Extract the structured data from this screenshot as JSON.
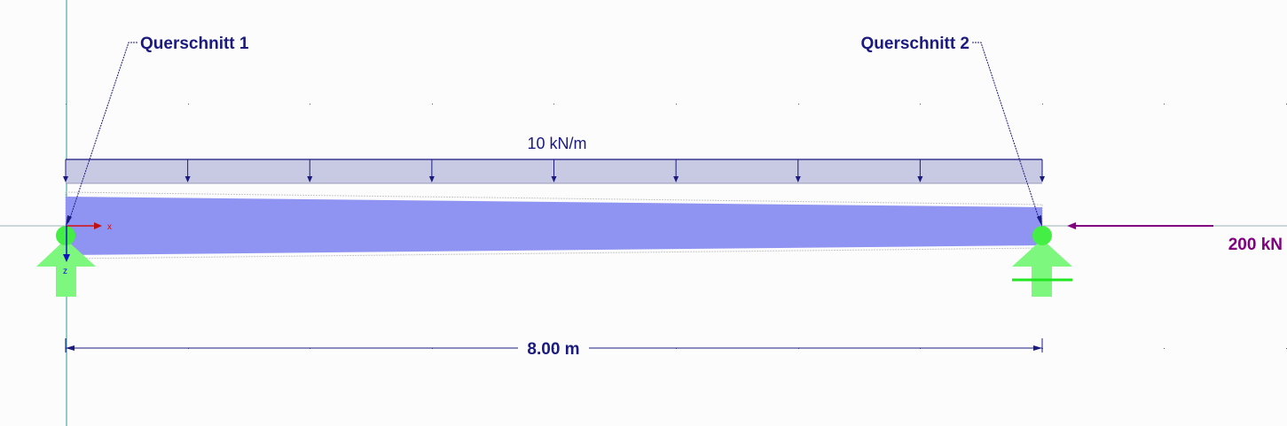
{
  "sections": [
    {
      "label": "Querschnitt 1"
    },
    {
      "label": "Querschnitt 2"
    }
  ],
  "distributed_load": {
    "label": "10 kN/m",
    "arrow_count": 9
  },
  "axial_load": {
    "label": "200 kN"
  },
  "span": {
    "label": "8.00 m"
  },
  "axes": {
    "x": "x",
    "z": "z"
  },
  "colors": {
    "beam": "#8f93f2",
    "load_fill": "#c8c9e2",
    "load_stroke": "#1a1a80",
    "support": "#44ee44",
    "axial_force": "#800080",
    "annotation": "#1a1a80",
    "axis_line": "#008080"
  }
}
